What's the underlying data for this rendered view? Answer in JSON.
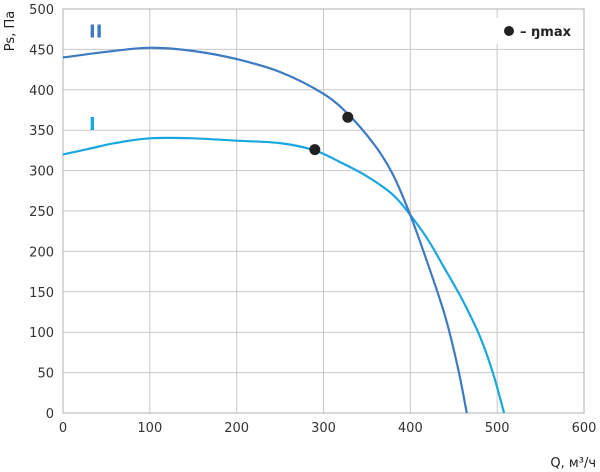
{
  "chart_data": {
    "type": "line",
    "xlabel": "Q, м³/ч",
    "ylabel": "Ps, Па",
    "xlim": [
      0,
      600
    ],
    "ylim": [
      0,
      500
    ],
    "x_ticks": [
      0,
      100,
      200,
      300,
      400,
      500,
      600
    ],
    "y_ticks": [
      0,
      50,
      100,
      150,
      200,
      250,
      300,
      350,
      400,
      450,
      500
    ],
    "grid": true,
    "legend": {
      "position": "top-right",
      "marker": "filled-circle",
      "label": "– ŋmax"
    },
    "series": [
      {
        "name": "I",
        "color": "#19a7e0",
        "label_at": [
          30,
          350
        ],
        "points": [
          [
            0,
            320
          ],
          [
            30,
            327
          ],
          [
            60,
            334
          ],
          [
            100,
            340
          ],
          [
            150,
            340
          ],
          [
            200,
            337
          ],
          [
            250,
            334
          ],
          [
            290,
            325
          ],
          [
            320,
            310
          ],
          [
            350,
            293
          ],
          [
            380,
            270
          ],
          [
            400,
            245
          ],
          [
            420,
            215
          ],
          [
            440,
            178
          ],
          [
            460,
            140
          ],
          [
            480,
            95
          ],
          [
            495,
            50
          ],
          [
            508,
            0
          ]
        ],
        "eta_max": [
          290,
          326
        ]
      },
      {
        "name": "II",
        "color": "#3d7ac2",
        "label_at": [
          30,
          465
        ],
        "points": [
          [
            0,
            440
          ],
          [
            50,
            447
          ],
          [
            100,
            452
          ],
          [
            150,
            448
          ],
          [
            200,
            438
          ],
          [
            250,
            422
          ],
          [
            300,
            395
          ],
          [
            330,
            368
          ],
          [
            360,
            330
          ],
          [
            380,
            295
          ],
          [
            400,
            245
          ],
          [
            420,
            185
          ],
          [
            440,
            120
          ],
          [
            455,
            55
          ],
          [
            465,
            0
          ]
        ],
        "eta_max": [
          328,
          366
        ]
      }
    ]
  }
}
